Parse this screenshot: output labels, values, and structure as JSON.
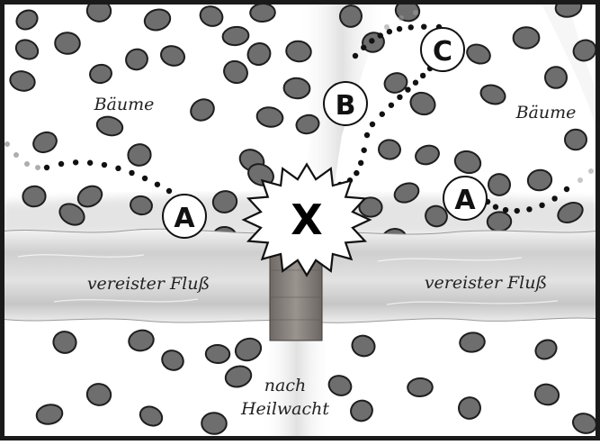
{
  "labels": {
    "trees_left": "Bäume",
    "trees_right": "Bäume",
    "river_left": "vereister Fluß",
    "river_right": "vereister Fluß",
    "destination_line1": "nach",
    "destination_line2": "Heilwacht"
  },
  "markers": {
    "a_left": "A",
    "a_right": "A",
    "b": "B",
    "c": "C",
    "x": "X"
  },
  "colors": {
    "frame": "#1a1a1a",
    "background": "#ffffff",
    "tree_fill": "#6e6e6e",
    "tree_stroke": "#1e1e1e",
    "path_dots": "#111111",
    "river_ice": "#d4d4d4",
    "bridge": "#8a8580"
  }
}
